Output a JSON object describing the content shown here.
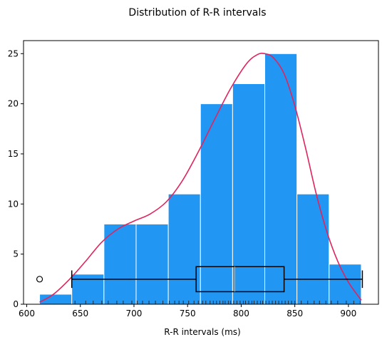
{
  "chart_data": {
    "type": "bar",
    "title": "Distribution of R-R intervals",
    "xlabel": "R-R intervals (ms)",
    "ylabel": "",
    "xlim": [
      597,
      928
    ],
    "ylim": [
      0,
      26.3
    ],
    "xticks": [
      600,
      650,
      700,
      750,
      800,
      850,
      900
    ],
    "yticks": [
      0,
      5,
      10,
      15,
      20,
      25
    ],
    "grid": false,
    "bar_color": "#2196F3",
    "bar_edge_color": "#ffffff",
    "kde_color": "#E0245E",
    "median_color": "#F28E2B",
    "bins": [
      {
        "x0": 612,
        "x1": 642,
        "count": 1
      },
      {
        "x0": 642,
        "x1": 672,
        "count": 3
      },
      {
        "x0": 672,
        "x1": 702,
        "count": 8
      },
      {
        "x0": 702,
        "x1": 732,
        "count": 8
      },
      {
        "x0": 732,
        "x1": 762,
        "count": 11
      },
      {
        "x0": 762,
        "x1": 792,
        "count": 20
      },
      {
        "x0": 792,
        "x1": 822,
        "count": 22
      },
      {
        "x0": 822,
        "x1": 852,
        "count": 25
      },
      {
        "x0": 852,
        "x1": 882,
        "count": 11
      },
      {
        "x0": 882,
        "x1": 912,
        "count": 4
      }
    ],
    "kde": {
      "x": [
        612,
        625,
        640,
        655,
        670,
        685,
        700,
        715,
        730,
        745,
        760,
        775,
        790,
        805,
        815,
        822,
        830,
        840,
        850,
        860,
        870,
        880,
        890,
        900,
        912
      ],
      "y": [
        0.2,
        1.0,
        2.5,
        4.3,
        6.2,
        7.5,
        8.3,
        9.0,
        10.2,
        12.3,
        15.2,
        18.4,
        21.5,
        24.0,
        24.9,
        25.0,
        24.6,
        23.0,
        19.8,
        15.6,
        11.0,
        7.2,
        4.3,
        2.2,
        0.4
      ]
    },
    "boxplot": {
      "whisker_low": 642,
      "q1": 758,
      "median": 794,
      "q3": 840,
      "whisker_high": 913,
      "outliers": [
        612
      ],
      "y_center": 2.5,
      "y_half_height": 1.25
    },
    "rug": [
      645,
      655,
      662,
      670,
      676,
      684,
      690,
      698,
      703,
      708,
      714,
      720,
      727,
      733,
      738,
      742,
      746,
      751,
      756,
      760,
      764,
      767,
      771,
      774,
      777,
      780,
      783,
      785,
      788,
      790,
      793,
      796,
      799,
      802,
      804,
      807,
      810,
      812,
      815,
      818,
      820,
      823,
      826,
      829,
      832,
      835,
      838,
      841,
      844,
      847,
      850,
      856,
      862,
      868,
      873,
      879,
      884,
      890,
      898,
      905,
      911
    ]
  }
}
